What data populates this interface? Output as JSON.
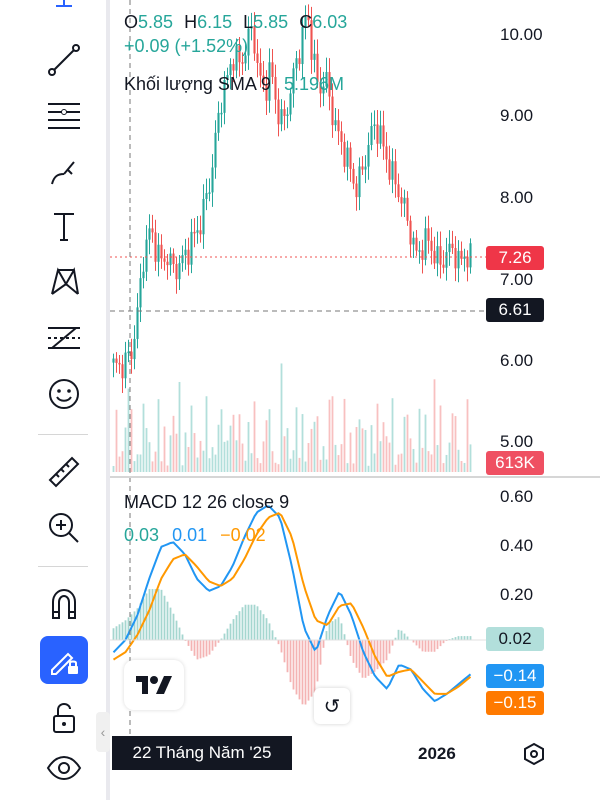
{
  "ohlc": {
    "o_label": "O",
    "o_value": "5.85",
    "h_label": "H",
    "h_value": "6.15",
    "l_label": "L",
    "l_value": "5.85",
    "c_label": "C",
    "c_value": "6.03",
    "change": "+0.09 (+1.52%)"
  },
  "volume_legend": {
    "label": "Khối lượng SMA 9",
    "value": "5.196M"
  },
  "price_axis": [
    "10.00",
    "9.00",
    "8.00",
    "7.00",
    "6.00",
    "5.00"
  ],
  "price_labels": {
    "last": "7.26",
    "crosshair": "6.61",
    "volume": "613K"
  },
  "macd": {
    "label": "MACD 12 26 close 9",
    "values": [
      "0.03",
      "0.01",
      "−0.02"
    ],
    "axis": [
      "0.60",
      "0.40",
      "0.20"
    ],
    "labels": {
      "hist": "0.02",
      "macd": "−0.14",
      "signal": "−0.15"
    }
  },
  "time": {
    "crosshair_date": "22 Tháng Năm '25",
    "year": "2026"
  },
  "footer_text": "",
  "colors": {
    "up": "#26a69a",
    "down": "#ef5350",
    "macd": "#2196f3",
    "signal": "#ff9800",
    "accent": "#2962ff",
    "dark": "#131722"
  },
  "tools": [
    "crosshair-icon",
    "trend-line-icon",
    "fib-icon",
    "brush-icon",
    "text-icon",
    "pattern-icon",
    "forecast-icon",
    "emoji-icon",
    "ruler-icon",
    "zoom-in-icon",
    "magnet-icon",
    "lock-drawing-icon",
    "unlock-icon",
    "eye-icon"
  ],
  "chart_data": {
    "type": "candlestick",
    "price_ylim": [
      4.9,
      10.4
    ],
    "price_path": [
      5.95,
      5.92,
      6.0,
      6.1,
      6.6,
      7.3,
      7.6,
      7.4,
      7.2,
      7.3,
      7.1,
      7.2,
      7.3,
      7.5,
      7.6,
      7.9,
      8.2,
      8.8,
      9.3,
      9.5,
      9.8,
      9.6,
      9.9,
      10.1,
      9.5,
      9.3,
      9.6,
      9.1,
      8.9,
      9.2,
      9.6,
      9.9,
      10.3,
      9.7,
      9.3,
      9.5,
      9.1,
      8.8,
      8.6,
      8.4,
      8.1,
      8.3,
      8.6,
      8.9,
      8.8,
      8.5,
      8.3,
      8.1,
      7.9,
      7.6,
      7.3,
      7.4,
      7.5,
      7.3,
      7.2,
      7.3,
      7.4,
      7.2,
      7.3,
      7.26
    ],
    "macd_ylim": [
      -0.3,
      0.62
    ],
    "macd_line": [
      -0.05,
      0.0,
      0.1,
      0.25,
      0.38,
      0.4,
      0.35,
      0.25,
      0.2,
      0.22,
      0.3,
      0.42,
      0.52,
      0.55,
      0.5,
      0.3,
      0.05,
      -0.05,
      0.1,
      0.2,
      0.1,
      -0.05,
      -0.15,
      -0.2,
      -0.1,
      -0.12,
      -0.2,
      -0.25,
      -0.22,
      -0.18,
      -0.14
    ],
    "signal_line": [
      -0.08,
      -0.05,
      0.02,
      0.12,
      0.25,
      0.33,
      0.35,
      0.3,
      0.24,
      0.22,
      0.25,
      0.33,
      0.43,
      0.5,
      0.52,
      0.42,
      0.22,
      0.08,
      0.06,
      0.14,
      0.15,
      0.05,
      -0.07,
      -0.15,
      -0.13,
      -0.12,
      -0.17,
      -0.22,
      -0.22,
      -0.19,
      -0.15
    ]
  }
}
